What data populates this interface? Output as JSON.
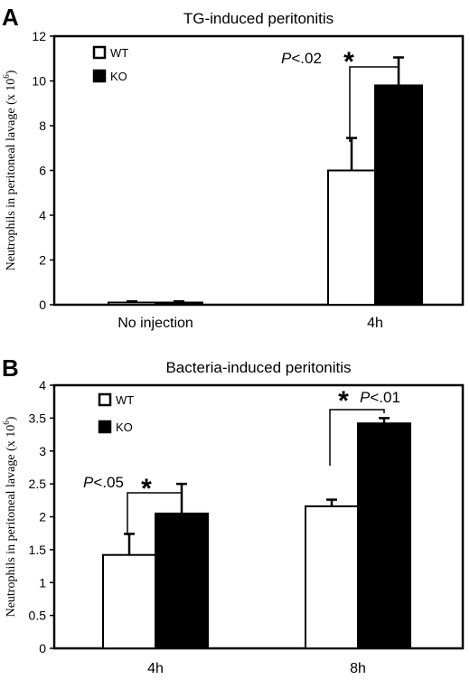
{
  "chart_data": [
    {
      "type": "bar",
      "panel_label": "A",
      "title": "TG-induced peritonitis",
      "ylabel_main": "Neutrophils in peritoneal lavage (x 10",
      "ylabel_sup": "6",
      "ylabel_end": ")",
      "ylim": [
        0,
        12
      ],
      "yticks": [
        0,
        2,
        4,
        6,
        8,
        10,
        12
      ],
      "categories": [
        "No injection",
        "4h"
      ],
      "series": [
        {
          "name": "WT",
          "color": "#ffffff",
          "values": [
            0.1,
            6.0
          ],
          "errors": [
            0.05,
            1.45
          ]
        },
        {
          "name": "KO",
          "color": "#000000",
          "values": [
            0.1,
            9.8
          ],
          "errors": [
            0.05,
            1.25
          ]
        }
      ],
      "legend_placement": "top-left",
      "annotations": [
        {
          "category_index": 1,
          "p_prefix": "P",
          "p_rest": "<.02",
          "star": "*",
          "text_side": "left"
        }
      ]
    },
    {
      "type": "bar",
      "panel_label": "B",
      "title": "Bacteria-induced peritonitis",
      "ylabel_main": "Neutrophils in peritoneal lavage (x 10",
      "ylabel_sup": "6",
      "ylabel_end": ")",
      "ylim": [
        0,
        4
      ],
      "yticks": [
        0,
        0.5,
        1,
        1.5,
        2,
        2.5,
        3,
        3.5,
        4
      ],
      "categories": [
        "4h",
        "8h"
      ],
      "series": [
        {
          "name": "WT",
          "color": "#ffffff",
          "values": [
            1.42,
            2.16
          ],
          "errors": [
            0.32,
            0.1
          ]
        },
        {
          "name": "KO",
          "color": "#000000",
          "values": [
            2.05,
            3.42
          ],
          "errors": [
            0.45,
            0.08
          ]
        }
      ],
      "legend_placement": "top-left",
      "annotations": [
        {
          "category_index": 0,
          "p_prefix": "P",
          "p_rest": "<.05",
          "star": "*",
          "text_side": "left"
        },
        {
          "category_index": 1,
          "p_prefix": "P",
          "p_rest": "<.01",
          "star": "*",
          "text_side": "right"
        }
      ]
    }
  ]
}
